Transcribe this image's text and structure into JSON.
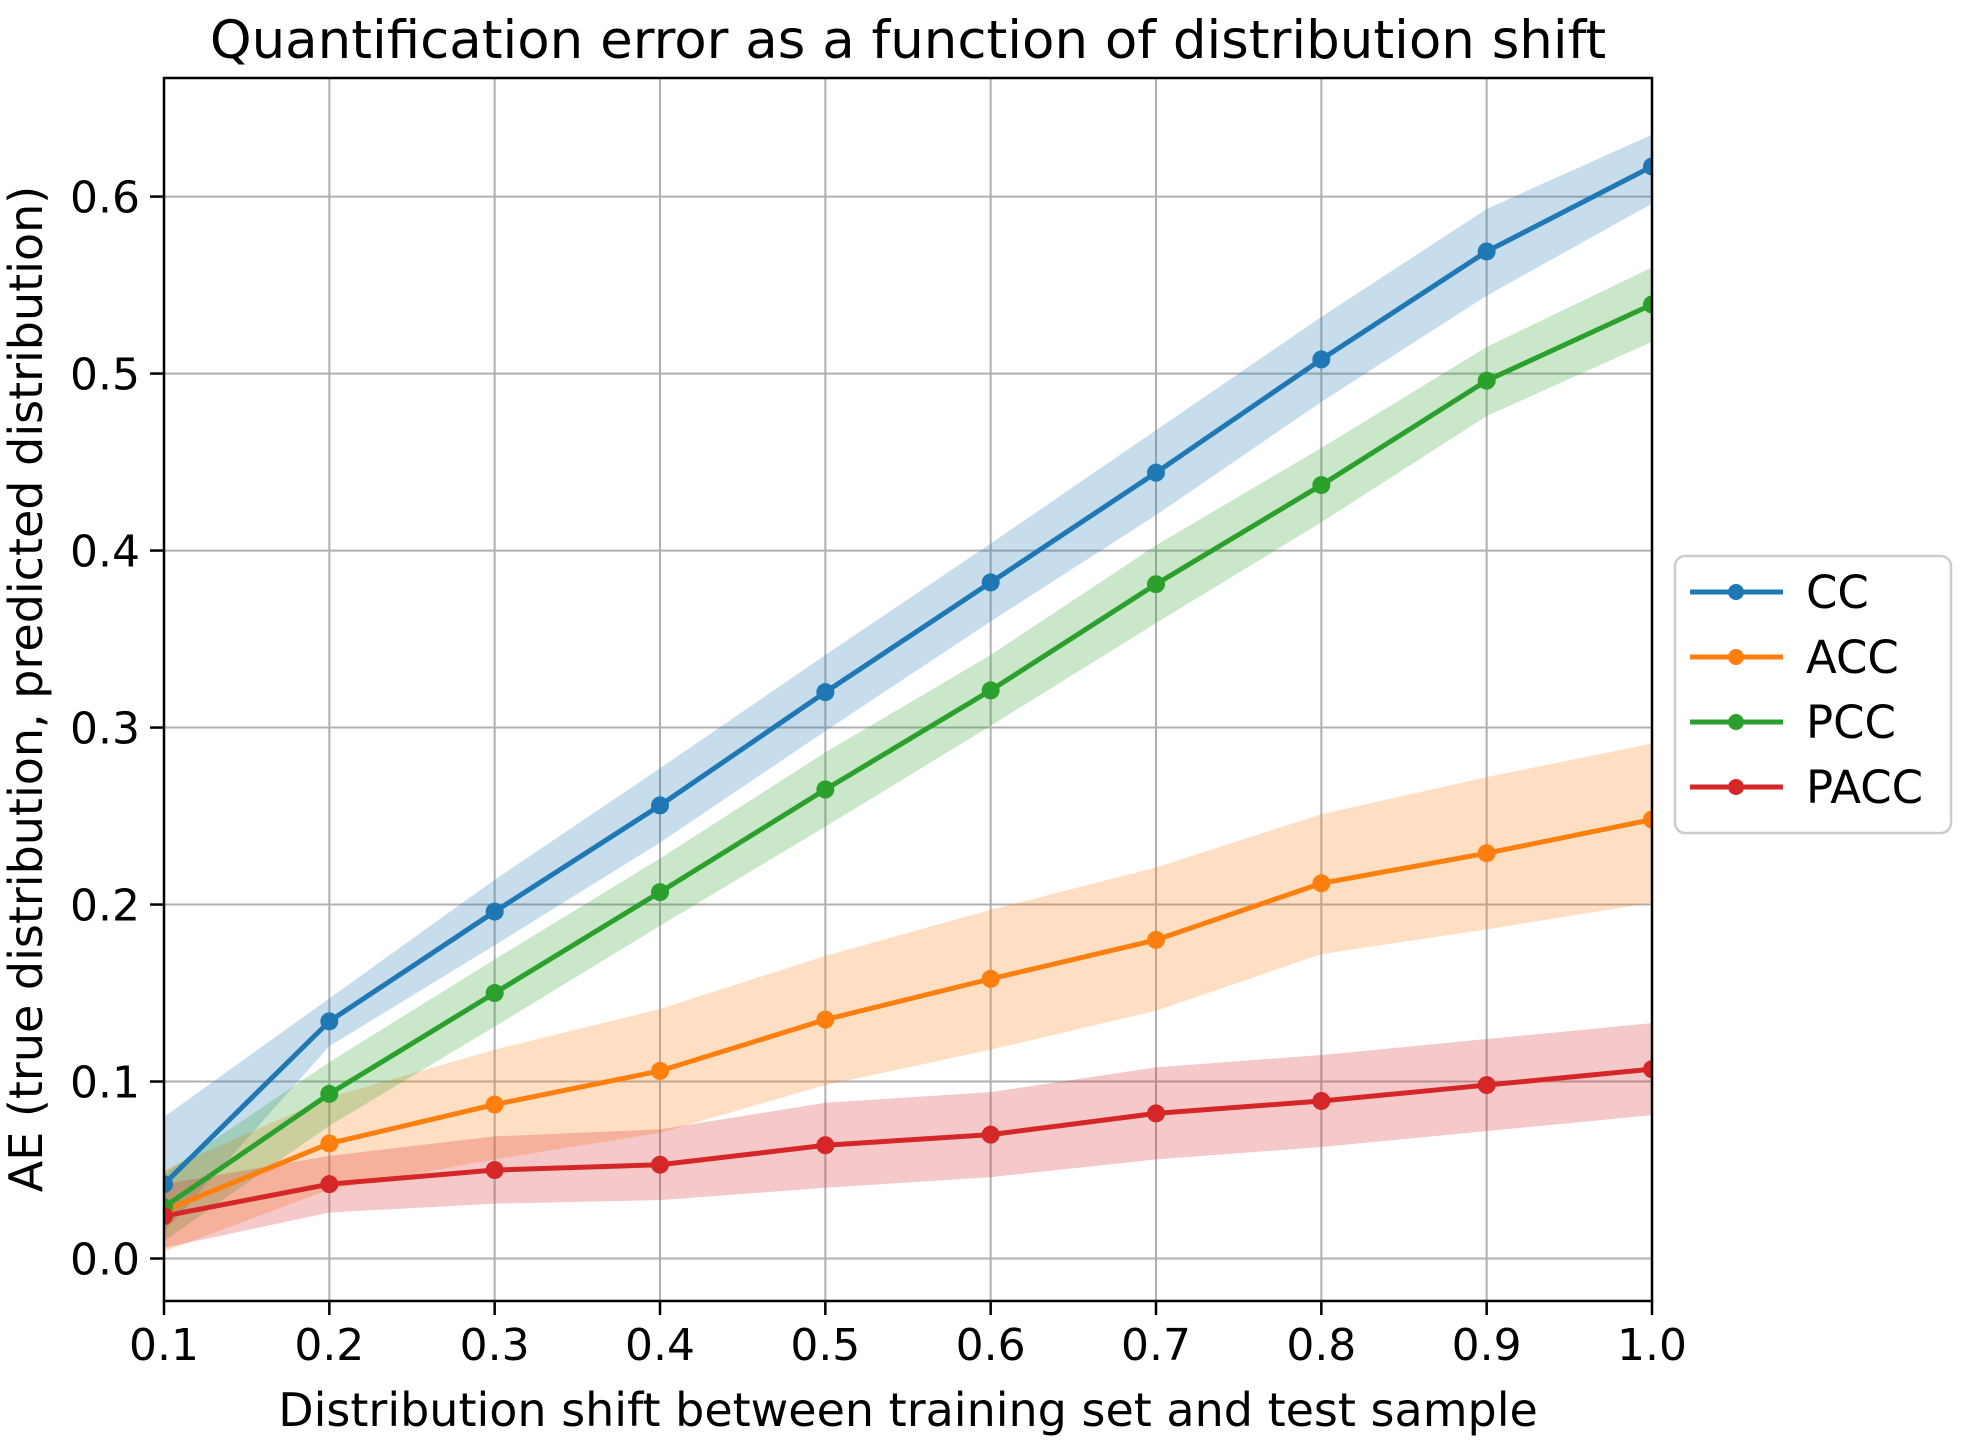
{
  "chart_data": {
    "type": "line",
    "title": "Quantification error as a function of distribution shift",
    "xlabel": "Distribution shift between training set and test sample",
    "ylabel": "AE (true distribution, predicted distribution)",
    "grid": true,
    "legend_position": "right of axes, vertically centered",
    "x": [
      0.1,
      0.2,
      0.3,
      0.4,
      0.5,
      0.6,
      0.7,
      0.8,
      0.9,
      1.0
    ],
    "xlim": [
      0.1,
      1.0
    ],
    "ylim": [
      -0.024,
      0.667
    ],
    "xtick_labels": [
      "0.1",
      "0.2",
      "0.3",
      "0.4",
      "0.5",
      "0.6",
      "0.7",
      "0.8",
      "0.9",
      "1.0"
    ],
    "ytick_values": [
      0.0,
      0.1,
      0.2,
      0.3,
      0.4,
      0.5,
      0.6
    ],
    "ytick_labels": [
      "0.0",
      "0.1",
      "0.2",
      "0.3",
      "0.4",
      "0.5",
      "0.6"
    ],
    "marker": "circle",
    "band_opacity": 0.25,
    "grid_color": "#b0b0b0",
    "legend_border_color": "#cccccc",
    "series": [
      {
        "name": "CC",
        "color": "#1f77b4",
        "values": [
          0.042,
          0.134,
          0.196,
          0.256,
          0.32,
          0.382,
          0.444,
          0.508,
          0.569,
          0.617
        ],
        "band_lower": [
          0.015,
          0.12,
          0.177,
          0.235,
          0.298,
          0.36,
          0.42,
          0.484,
          0.544,
          0.596
        ],
        "band_upper": [
          0.08,
          0.147,
          0.214,
          0.277,
          0.341,
          0.404,
          0.468,
          0.532,
          0.593,
          0.635
        ]
      },
      {
        "name": "ACC",
        "color": "#ff7f0e",
        "values": [
          0.027,
          0.065,
          0.087,
          0.106,
          0.135,
          0.158,
          0.18,
          0.212,
          0.229,
          0.248
        ],
        "band_lower": [
          0.004,
          0.039,
          0.056,
          0.071,
          0.098,
          0.118,
          0.14,
          0.172,
          0.186,
          0.201
        ],
        "band_upper": [
          0.05,
          0.091,
          0.118,
          0.141,
          0.171,
          0.197,
          0.221,
          0.251,
          0.272,
          0.291
        ]
      },
      {
        "name": "PCC",
        "color": "#2ca02c",
        "values": [
          0.029,
          0.093,
          0.15,
          0.207,
          0.265,
          0.321,
          0.381,
          0.437,
          0.496,
          0.539
        ],
        "band_lower": [
          0.01,
          0.075,
          0.131,
          0.188,
          0.244,
          0.301,
          0.359,
          0.416,
          0.476,
          0.518
        ],
        "band_upper": [
          0.048,
          0.111,
          0.169,
          0.226,
          0.286,
          0.341,
          0.403,
          0.458,
          0.515,
          0.56
        ]
      },
      {
        "name": "PACC",
        "color": "#d62728",
        "values": [
          0.024,
          0.042,
          0.05,
          0.053,
          0.064,
          0.07,
          0.082,
          0.089,
          0.098,
          0.107
        ],
        "band_lower": [
          0.006,
          0.026,
          0.031,
          0.033,
          0.04,
          0.046,
          0.056,
          0.063,
          0.072,
          0.081
        ],
        "band_upper": [
          0.042,
          0.058,
          0.069,
          0.073,
          0.088,
          0.094,
          0.108,
          0.115,
          0.124,
          0.133
        ]
      }
    ]
  }
}
